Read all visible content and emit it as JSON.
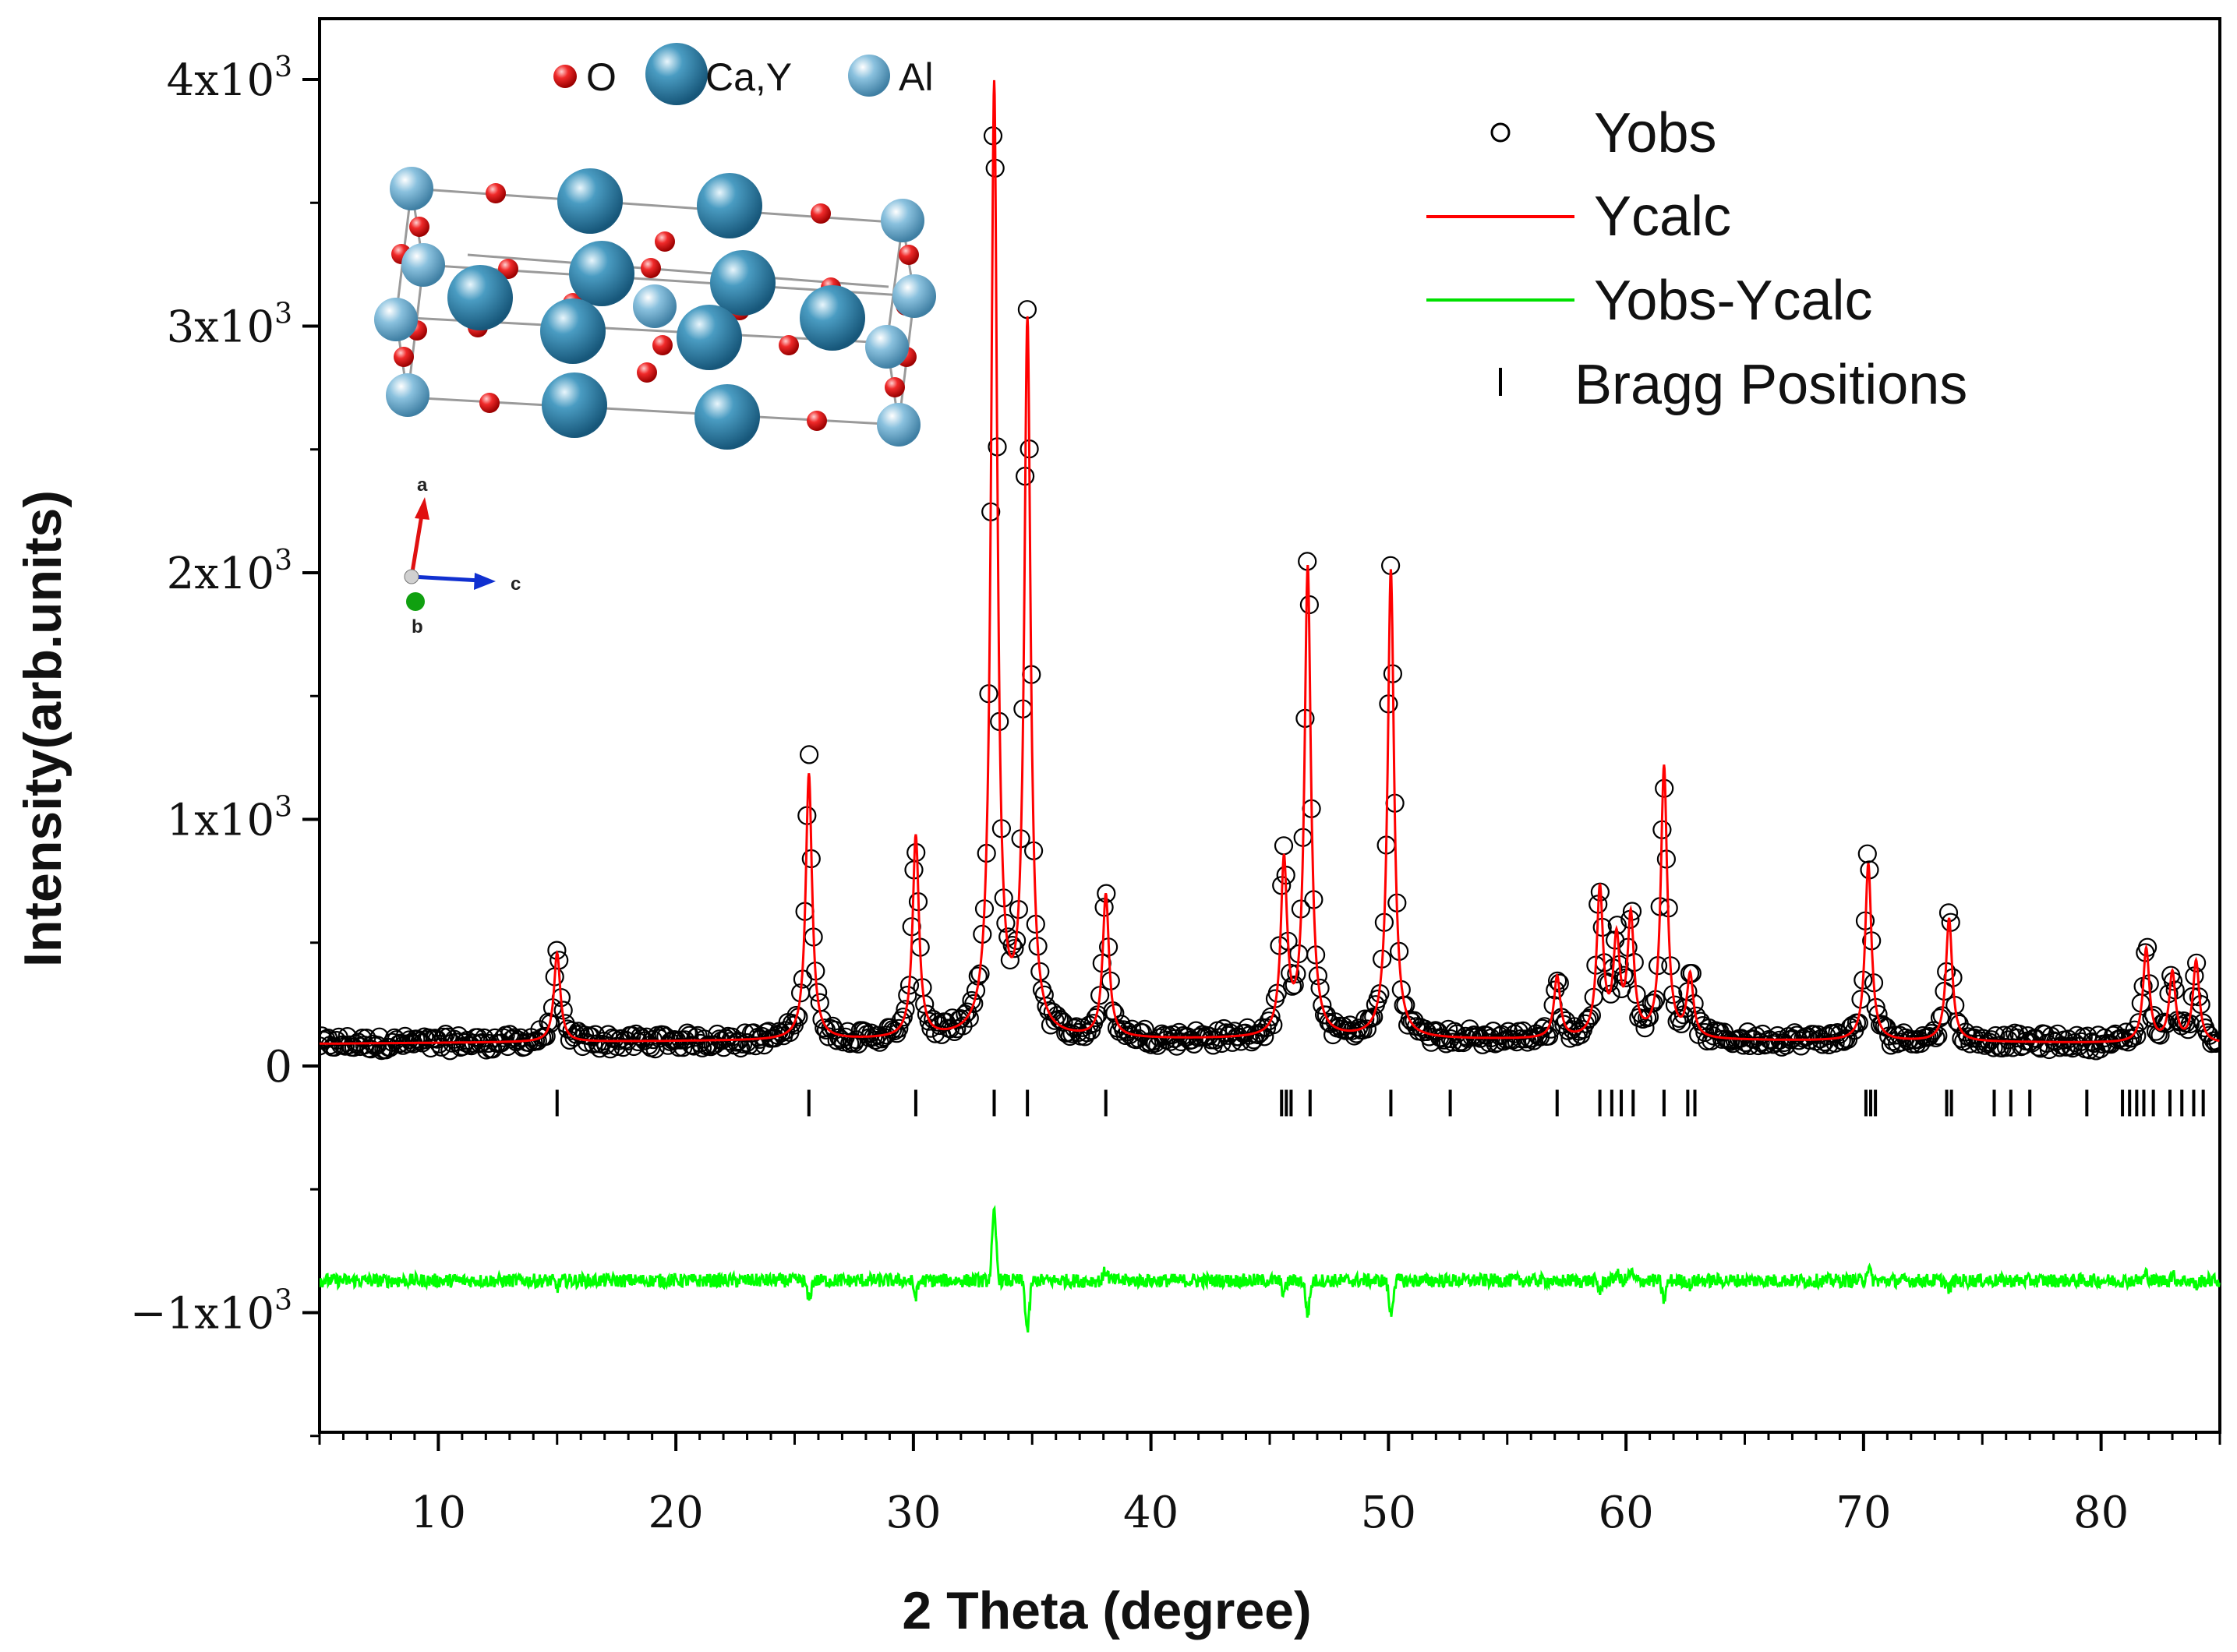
{
  "chart_data": {
    "type": "line",
    "title": "",
    "xlabel": "2 Theta (degree)",
    "ylabel": "Intensity(arb.units)",
    "xlim": [
      5,
      85
    ],
    "ylim": [
      -1500,
      4200
    ],
    "x_ticks": [
      10,
      20,
      30,
      40,
      50,
      60,
      70,
      80
    ],
    "y_ticks": [
      {
        "value": -1000,
        "mantissa": "−1x10",
        "exp": "3"
      },
      {
        "value": 0,
        "mantissa": "0",
        "exp": ""
      },
      {
        "value": 1000,
        "mantissa": "1x10",
        "exp": "3"
      },
      {
        "value": 2000,
        "mantissa": "2x10",
        "exp": "3"
      },
      {
        "value": 3000,
        "mantissa": "3x10",
        "exp": "3"
      },
      {
        "value": 4000,
        "mantissa": "4x10",
        "exp": "3"
      }
    ],
    "legend": {
      "position": "top-right",
      "entries": [
        {
          "label": "Yobs",
          "style": "open-circle",
          "color": "#000000"
        },
        {
          "label": "Ycalc",
          "style": "line",
          "color": "#ff0000"
        },
        {
          "label": "Yobs-Ycalc",
          "style": "line",
          "color": "#00ff00"
        },
        {
          "label": "Bragg Positions",
          "style": "tick",
          "color": "#000000"
        }
      ]
    },
    "background": 90,
    "difference_offset": -870,
    "bragg_tick_level": -150,
    "peaks": [
      {
        "two_theta": 15.0,
        "intensity": 360
      },
      {
        "two_theta": 25.6,
        "intensity": 1080
      },
      {
        "two_theta": 30.1,
        "intensity": 820
      },
      {
        "two_theta": 33.4,
        "intensity": 3850
      },
      {
        "two_theta": 34.8,
        "intensity": 2880
      },
      {
        "two_theta": 38.1,
        "intensity": 580
      },
      {
        "two_theta": 45.6,
        "intensity": 700
      },
      {
        "two_theta": 46.6,
        "intensity": 1900
      },
      {
        "two_theta": 50.1,
        "intensity": 1900
      },
      {
        "two_theta": 57.1,
        "intensity": 250
      },
      {
        "two_theta": 58.9,
        "intensity": 600
      },
      {
        "two_theta": 59.6,
        "intensity": 380
      },
      {
        "two_theta": 60.2,
        "intensity": 480
      },
      {
        "two_theta": 61.6,
        "intensity": 1100
      },
      {
        "two_theta": 62.7,
        "intensity": 250
      },
      {
        "two_theta": 70.2,
        "intensity": 720
      },
      {
        "two_theta": 73.6,
        "intensity": 500
      },
      {
        "two_theta": 81.9,
        "intensity": 380
      },
      {
        "two_theta": 83.0,
        "intensity": 280
      },
      {
        "two_theta": 84.0,
        "intensity": 330
      }
    ],
    "bragg_positions": [
      15.0,
      25.6,
      30.1,
      33.4,
      34.8,
      38.1,
      45.5,
      45.7,
      45.9,
      46.7,
      50.1,
      52.6,
      57.1,
      58.9,
      59.4,
      59.8,
      60.3,
      61.6,
      62.6,
      62.9,
      70.1,
      70.3,
      70.5,
      73.5,
      73.7,
      75.5,
      76.2,
      77.0,
      79.4,
      80.9,
      81.2,
      81.5,
      81.8,
      82.2,
      82.9,
      83.4,
      83.9,
      84.3
    ]
  },
  "inset": {
    "atoms_legend": [
      {
        "label": "O",
        "color": "#e52020",
        "size": "small"
      },
      {
        "label": "Ca,Y",
        "color": "#2b7fa6",
        "size": "large"
      },
      {
        "label": "Al",
        "color": "#6fb0d2",
        "size": "medium"
      }
    ],
    "axes_labels": {
      "a": "a",
      "b": "b",
      "c": "c"
    },
    "axes_colors": {
      "a": "#e01010",
      "b": "#10a010",
      "c": "#1030d0"
    }
  }
}
